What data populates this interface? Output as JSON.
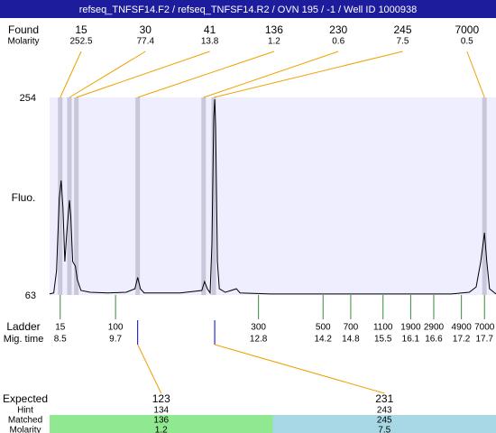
{
  "header": {
    "title": "refseq_TNFSF14.F2 / refseq_TNFSF14.R2 / OVN 195 / -1 / Well ID 1000938"
  },
  "chart_data": {
    "type": "electropherogram",
    "y_label": "Fluo.",
    "ylim": [
      63,
      254
    ],
    "yticks": [
      254,
      63
    ],
    "xlim": [
      8.27,
      17.95
    ],
    "band_color": "#c8c8da",
    "plot_color": "#eeeeff",
    "found": {
      "label": "Found",
      "molarity_label": "Molarity",
      "color": "#f0a000",
      "peaks": [
        {
          "size": 15,
          "molarity": 252.5,
          "time": 8.5
        },
        {
          "size": 30,
          "molarity": 77.4,
          "time": 8.7
        },
        {
          "size": 41,
          "molarity": 13.8,
          "time": 8.85
        },
        {
          "size": 136,
          "molarity": 1.2,
          "time": 10.18
        },
        {
          "size": 230,
          "molarity": 0.6,
          "time": 11.61
        },
        {
          "size": 245,
          "molarity": 7.5,
          "time": 11.83
        },
        {
          "size": 7000,
          "molarity": 0.5,
          "time": 17.7
        }
      ]
    },
    "ladder": {
      "label": "Ladder",
      "time_label": "Mig. time",
      "color": "#3a8a3a",
      "sizes": [
        15,
        100,
        300,
        500,
        700,
        1100,
        1900,
        2900,
        4900,
        7000
      ],
      "times": [
        8.5,
        9.7,
        12.8,
        14.2,
        14.8,
        15.5,
        16.1,
        16.6,
        17.2,
        17.7
      ]
    },
    "expected": {
      "label": "Expected",
      "hint_label": "Hint",
      "matched_label": "Matched",
      "molarity_label": "Molarity",
      "marker_color": "#0000c0",
      "items": [
        {
          "size": 123,
          "hint": 134,
          "matched": 136,
          "molarity": 1.2,
          "time": 10.18,
          "color": "#90e890"
        },
        {
          "size": 231,
          "hint": 243,
          "matched": 245,
          "molarity": 7.5,
          "time": 11.85,
          "color": "#a8d8e6"
        }
      ]
    },
    "trace": {
      "color": "#000000",
      "x": [
        8.27,
        8.36,
        8.42,
        8.48,
        8.52,
        8.56,
        8.6,
        8.64,
        8.7,
        8.73,
        8.77,
        8.83,
        8.87,
        8.95,
        9.15,
        9.54,
        9.93,
        10.12,
        10.18,
        10.24,
        10.32,
        11.1,
        11.57,
        11.63,
        11.69,
        11.75,
        11.79,
        11.83,
        11.85,
        11.87,
        11.91,
        11.95,
        12.08,
        12.32,
        12.4,
        13.06,
        15.02,
        16.98,
        17.37,
        17.52,
        17.62,
        17.7,
        17.75,
        17.81,
        17.95
      ],
      "values": [
        64,
        65,
        86.5,
        156.3,
        173.7,
        147.6,
        95.3,
        121.4,
        154.6,
        138.9,
        95.3,
        90.9,
        77.8,
        67.4,
        65.6,
        65,
        65.6,
        69,
        80,
        69,
        65,
        65,
        67.4,
        76,
        69,
        65,
        112.7,
        234.8,
        252.2,
        226.1,
        95.3,
        69,
        65.6,
        69,
        65,
        64,
        64,
        64,
        65.6,
        70.8,
        95.3,
        123.2,
        95.3,
        69,
        64
      ]
    }
  }
}
